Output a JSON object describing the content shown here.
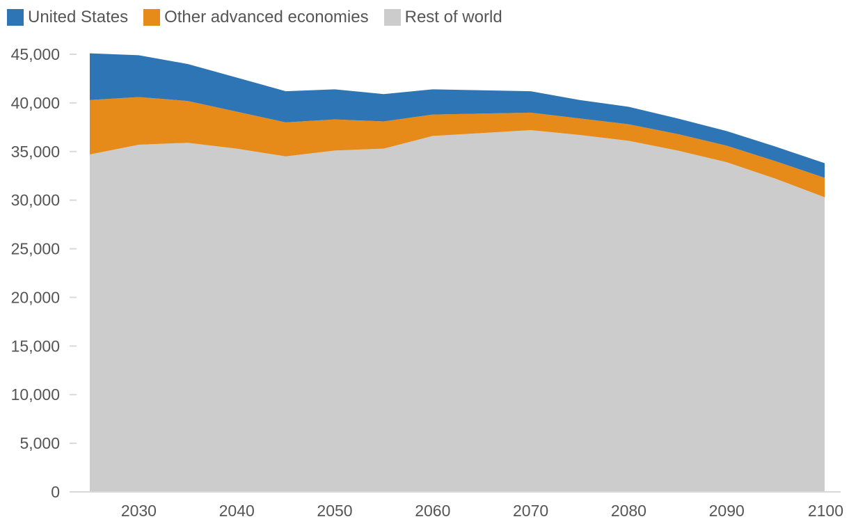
{
  "chart_data": {
    "type": "area",
    "stacked": true,
    "title": "",
    "xlabel": "",
    "ylabel": "",
    "x": [
      2025,
      2030,
      2035,
      2040,
      2045,
      2050,
      2055,
      2060,
      2065,
      2070,
      2075,
      2080,
      2085,
      2090,
      2095,
      2100
    ],
    "series": [
      {
        "name": "Rest of world",
        "color": "#cccccc",
        "values": [
          34700,
          35700,
          35900,
          35300,
          34500,
          35100,
          35300,
          36600,
          36900,
          37200,
          36700,
          36100,
          35100,
          33900,
          32200,
          30300
        ]
      },
      {
        "name": "Other advanced economies",
        "color": "#e68a1a",
        "values": [
          5600,
          4900,
          4300,
          3800,
          3500,
          3200,
          2800,
          2200,
          2000,
          1800,
          1700,
          1700,
          1700,
          1700,
          1800,
          2000
        ]
      },
      {
        "name": "United States",
        "color": "#2e75b6",
        "values": [
          4800,
          4300,
          3800,
          3500,
          3200,
          3100,
          2800,
          2600,
          2400,
          2200,
          1900,
          1800,
          1600,
          1500,
          1500,
          1500
        ]
      }
    ],
    "legend_order": [
      "United States",
      "Other advanced economies",
      "Rest of world"
    ],
    "x_ticks": [
      2030,
      2040,
      2050,
      2060,
      2070,
      2080,
      2090,
      2100
    ],
    "x_tick_labels": [
      "2030",
      "2040",
      "2050",
      "2060",
      "2070",
      "2080",
      "2090",
      "2100"
    ],
    "y_ticks": [
      0,
      5000,
      10000,
      15000,
      20000,
      25000,
      30000,
      35000,
      40000,
      45000
    ],
    "y_tick_labels": [
      "0",
      "5,000",
      "10,000",
      "15,000",
      "20,000",
      "25,000",
      "30,000",
      "35,000",
      "40,000",
      "45,000"
    ],
    "xlim": [
      2025,
      2100
    ],
    "ylim": [
      0,
      45000
    ],
    "grid": false,
    "legend_position": "top-left"
  }
}
